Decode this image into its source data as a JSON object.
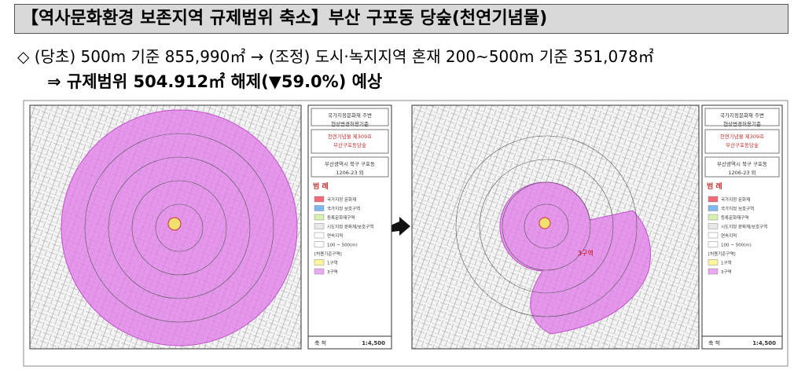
{
  "header": {
    "title": "【역사문화환경 보존지역 규제범위 축소】부산 구포동 당숲(천연기념물)"
  },
  "summary": {
    "lines": [
      "◇ (당초) 500m 기준 855,990㎡ → (조정) 도시·녹지지역 혼재 200~500m 기준 351,078㎡",
      "⇒ 규제범위 504.912㎡ 해제(▼59.0%) 예상"
    ]
  },
  "panel": {
    "heading": [
      "국가지정문화재 주변",
      "현상변경허용기준"
    ],
    "name": [
      "천연기념물 제309호",
      "부산구포동당숲"
    ],
    "address": [
      "부산광역시 북구 구포동",
      "1206-23 외"
    ],
    "legend_title": "범 례",
    "legend": [
      {
        "label": "국가지정 문화재",
        "color": "#f06a7a"
      },
      {
        "label": "국가지정 보호구역",
        "color": "#7fb8f0"
      },
      {
        "label": "등록문화재구역",
        "color": "#d8f0b0"
      },
      {
        "label": "시도지정 문화재/보호구역",
        "color": "#e8e8e8"
      },
      {
        "label": "연속지적",
        "color": "#ffffff"
      },
      {
        "label": "100 ~ 500(m)",
        "color": "#ffffff"
      },
      {
        "label": "[허용기준구역]",
        "color": null
      },
      {
        "label": "1구역",
        "color": "#fff59a"
      },
      {
        "label": "3구역",
        "color": "#e9a8f0"
      }
    ],
    "scale_label": "축 척",
    "scale": "1:4,500"
  },
  "maps": {
    "right_zone_label": "3구역"
  }
}
